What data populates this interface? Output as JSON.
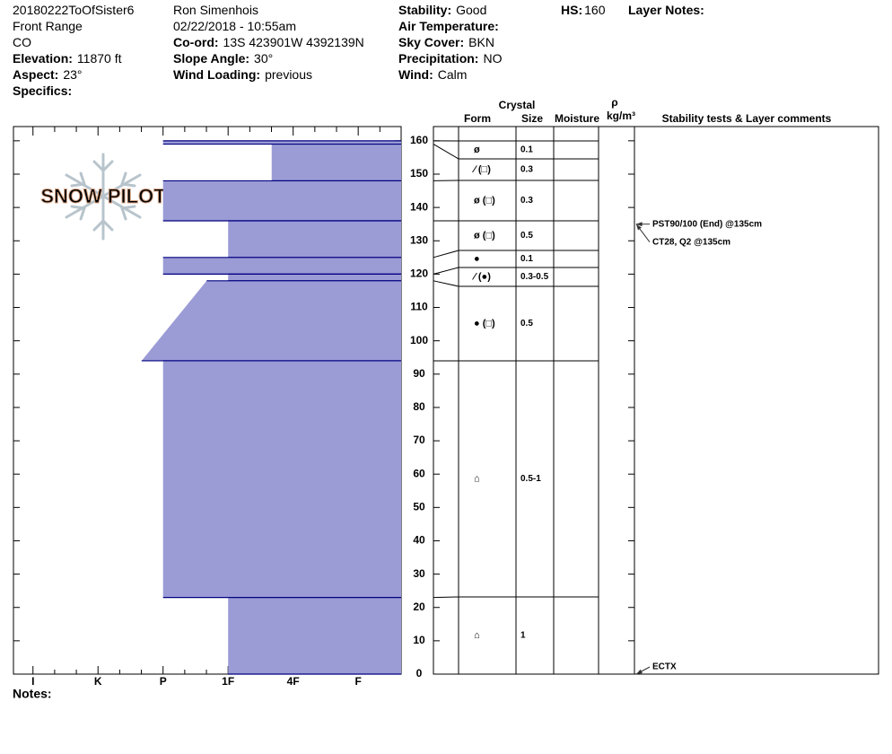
{
  "header": {
    "columns": [
      [
        {
          "value": "20180222ToOfSister6"
        },
        {
          "value": "Front Range"
        },
        {
          "value": "CO"
        },
        {
          "label": "Elevation:",
          "value": "11870 ft"
        },
        {
          "label": "Aspect:",
          "value": "23°"
        },
        {
          "label": "Specifics:"
        }
      ],
      [
        {
          "value": "Ron Simenhois"
        },
        {
          "value": "02/22/2018 - 10:55am"
        },
        {
          "label": "Co-ord:",
          "value": "13S 423901W 4392139N"
        },
        {
          "label": "Slope Angle:",
          "value": "30°"
        },
        {
          "label": "Wind Loading:",
          "value": "previous"
        }
      ],
      [
        {
          "label": "Stability:",
          "value": "Good"
        },
        {
          "label": "Air Temperature:"
        },
        {
          "label": "Sky Cover:",
          "value": "BKN"
        },
        {
          "label": "Precipitation:",
          "value": "NO"
        },
        {
          "label": "Wind:",
          "value": "Calm"
        }
      ],
      [
        {
          "label": "HS:",
          "value": 160
        }
      ],
      [
        {
          "label": "Layer Notes:"
        }
      ]
    ],
    "logo": "SNOW PILOT",
    "notes": "Notes:"
  },
  "table_headers": {
    "crystal": "Crystal",
    "form": "Form",
    "size": "Size",
    "moisture": "Moisture",
    "rho": "ρ",
    "density_unit": "kg/m³",
    "comments": "Stability tests & Layer comments"
  },
  "chart_data": {
    "type": "snow-profile",
    "fill": "#9b9bd6",
    "edge": "#00007f",
    "ylim": [
      0,
      164
    ],
    "yticks": [
      0,
      10,
      20,
      30,
      40,
      50,
      60,
      70,
      80,
      90,
      100,
      110,
      120,
      130,
      140,
      150,
      160
    ],
    "xlim": [
      0.7,
      6.66
    ],
    "xticks": [
      {
        "value": 1,
        "label": "I"
      },
      {
        "value": 2,
        "label": "K"
      },
      {
        "value": 3,
        "label": "P"
      },
      {
        "value": 4,
        "label": "1F"
      },
      {
        "value": 5,
        "label": "4F"
      },
      {
        "value": 6,
        "label": "F"
      }
    ],
    "layers": [
      {
        "top": 160,
        "bottom": 159,
        "hardness_top": 3,
        "hardness_bottom": 3,
        "form": "ø",
        "size": "0.1"
      },
      {
        "top": 159,
        "bottom": 148,
        "hardness_top": 4.67,
        "hardness_bottom": 4.67,
        "form": "⁄ (□)",
        "size": "0.3"
      },
      {
        "top": 148,
        "bottom": 136,
        "hardness_top": 3,
        "hardness_bottom": 3,
        "form": "ø (□)",
        "size": "0.3"
      },
      {
        "top": 136,
        "bottom": 125,
        "hardness_top": 4,
        "hardness_bottom": 4,
        "form": "ø (□)",
        "size": "0.5"
      },
      {
        "top": 125,
        "bottom": 120,
        "hardness_top": 3,
        "hardness_bottom": 3,
        "form": "●",
        "size": "0.1"
      },
      {
        "top": 120,
        "bottom": 118,
        "hardness_top": 4,
        "hardness_bottom": 4,
        "form": "⁄ (●)",
        "size": "0.3-0.5"
      },
      {
        "top": 118,
        "bottom": 94,
        "hardness_top": 3.67,
        "hardness_bottom": 2.67,
        "form": "● (□)",
        "size": "0.5"
      },
      {
        "top": 94,
        "bottom": 23,
        "hardness_top": 3,
        "hardness_bottom": 3,
        "form": "⌂",
        "size": "0.5-1"
      },
      {
        "top": 23,
        "bottom": 0,
        "hardness_top": 4,
        "hardness_bottom": 4,
        "form": "⌂",
        "size": "1"
      }
    ],
    "tests": [
      {
        "text": "PST90/100 (End) @135cm",
        "depth": 135
      },
      {
        "text": "CT28, Q2 @135cm",
        "depth": 135
      },
      {
        "text": "ECTX",
        "depth": 0
      }
    ]
  }
}
